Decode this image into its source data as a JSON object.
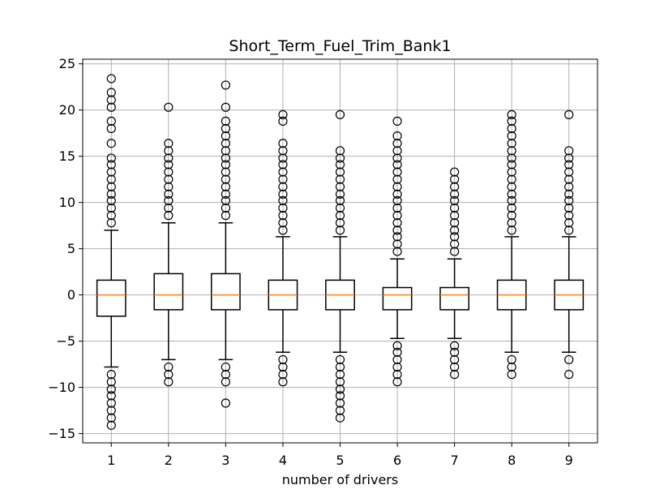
{
  "chart_data": {
    "type": "boxplot",
    "title": "Short_Term_Fuel_Trim_Bank1",
    "xlabel": "number of drivers",
    "ylabel": "",
    "ylim": [
      -16,
      25.5
    ],
    "yticks": [
      -15,
      -10,
      -5,
      0,
      5,
      10,
      15,
      20,
      25
    ],
    "ytick_labels": [
      "−15",
      "−10",
      "−5",
      "0",
      "5",
      "10",
      "15",
      "20",
      "25"
    ],
    "grid": true,
    "colors": {
      "box": "#000000",
      "median": "#ff7f0e",
      "grid": "#b0b0b0"
    },
    "boxes": [
      {
        "label": "1",
        "whislo": -7.8,
        "q1": -2.3,
        "med": 0,
        "q3": 1.6,
        "whishi": 7.0,
        "fliers": [
          23.4,
          21.9,
          21.1,
          20.3,
          18.8,
          18.0,
          16.4,
          14.8,
          14.1,
          13.3,
          12.5,
          11.7,
          10.9,
          10.2,
          9.4,
          8.6,
          7.8,
          -8.6,
          -9.4,
          -10.2,
          -10.9,
          -11.7,
          -12.5,
          -13.3,
          -14.1
        ]
      },
      {
        "label": "2",
        "whislo": -7.0,
        "q1": -1.6,
        "med": 0,
        "q3": 2.3,
        "whishi": 7.8,
        "fliers": [
          20.3,
          16.4,
          15.6,
          14.8,
          14.1,
          13.3,
          12.5,
          11.7,
          10.9,
          10.2,
          9.4,
          8.6,
          -7.8,
          -8.6,
          -9.4
        ]
      },
      {
        "label": "3",
        "whislo": -7.0,
        "q1": -1.6,
        "med": 0,
        "q3": 2.3,
        "whishi": 7.8,
        "fliers": [
          22.7,
          20.3,
          18.8,
          18.0,
          17.2,
          16.4,
          15.6,
          14.8,
          14.1,
          13.3,
          12.5,
          11.7,
          10.9,
          10.2,
          9.4,
          8.6,
          -7.8,
          -8.6,
          -9.4,
          -11.7
        ]
      },
      {
        "label": "4",
        "whislo": -6.2,
        "q1": -1.6,
        "med": 0,
        "q3": 1.6,
        "whishi": 6.3,
        "fliers": [
          19.5,
          18.8,
          16.4,
          15.6,
          14.8,
          14.1,
          13.3,
          12.5,
          11.7,
          10.9,
          10.2,
          9.4,
          8.6,
          7.8,
          7.0,
          -7.0,
          -7.8,
          -8.6,
          -9.4
        ]
      },
      {
        "label": "5",
        "whislo": -6.2,
        "q1": -1.6,
        "med": 0,
        "q3": 1.6,
        "whishi": 6.3,
        "fliers": [
          19.5,
          15.6,
          14.8,
          14.1,
          13.3,
          12.5,
          11.7,
          10.9,
          10.2,
          9.4,
          8.6,
          7.8,
          7.0,
          -7.0,
          -7.8,
          -8.6,
          -9.4,
          -10.2,
          -10.9,
          -11.7,
          -12.5,
          -13.3
        ]
      },
      {
        "label": "6",
        "whislo": -4.7,
        "q1": -1.6,
        "med": 0,
        "q3": 0.8,
        "whishi": 3.9,
        "fliers": [
          18.8,
          17.2,
          16.4,
          15.6,
          14.8,
          14.1,
          13.3,
          12.5,
          11.7,
          10.9,
          10.2,
          9.4,
          8.6,
          7.8,
          7.0,
          6.3,
          5.5,
          4.7,
          -5.5,
          -6.2,
          -7.0,
          -7.8,
          -8.6,
          -9.4
        ]
      },
      {
        "label": "7",
        "whislo": -4.7,
        "q1": -1.6,
        "med": 0,
        "q3": 0.8,
        "whishi": 3.9,
        "fliers": [
          13.3,
          12.5,
          11.7,
          10.9,
          10.2,
          9.4,
          8.6,
          7.8,
          7.0,
          6.3,
          5.5,
          4.7,
          -5.5,
          -6.2,
          -7.0,
          -7.8,
          -8.6
        ]
      },
      {
        "label": "8",
        "whislo": -6.2,
        "q1": -1.6,
        "med": 0,
        "q3": 1.6,
        "whishi": 6.3,
        "fliers": [
          19.5,
          18.8,
          18.0,
          17.2,
          16.4,
          15.6,
          14.8,
          14.1,
          13.3,
          12.5,
          11.7,
          10.9,
          10.2,
          9.4,
          8.6,
          7.8,
          7.0,
          -7.0,
          -7.8,
          -8.6
        ]
      },
      {
        "label": "9",
        "whislo": -6.2,
        "q1": -1.6,
        "med": 0,
        "q3": 1.6,
        "whishi": 6.3,
        "fliers": [
          19.5,
          15.6,
          14.8,
          14.1,
          13.3,
          12.5,
          11.7,
          10.9,
          10.2,
          9.4,
          8.6,
          7.8,
          7.0,
          -7.0,
          -8.6
        ]
      }
    ]
  }
}
